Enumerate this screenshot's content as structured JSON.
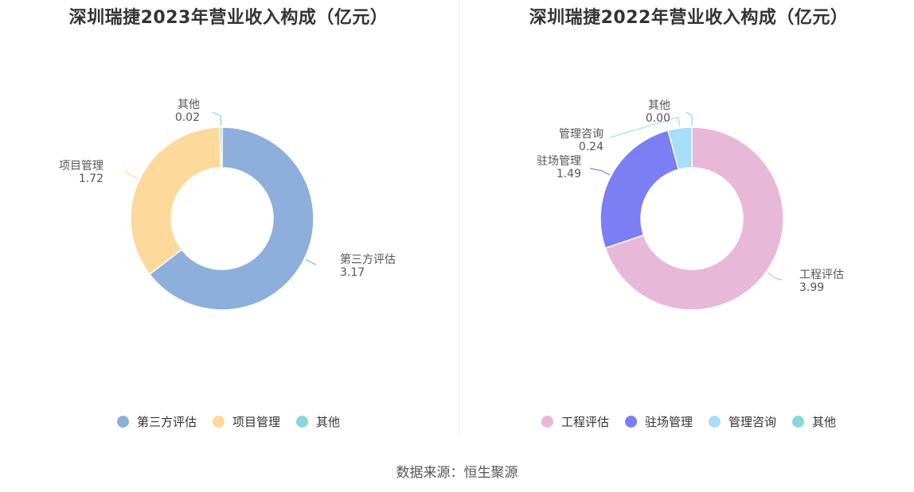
{
  "source": "数据来源：恒生聚源",
  "chart_data": [
    {
      "type": "pie",
      "title": "深圳瑞捷2023年营业收入构成（亿元）",
      "categories": [
        "第三方评估",
        "项目管理",
        "其他"
      ],
      "values": [
        3.17,
        1.72,
        0.02
      ],
      "value_labels": [
        "3.17",
        "1.72",
        "0.02"
      ],
      "colors": [
        "#8eaedb",
        "#fdd99b",
        "#89d6dc"
      ],
      "legend": "bottom-center"
    },
    {
      "type": "pie",
      "title": "深圳瑞捷2022年营业收入构成（亿元）",
      "categories": [
        "工程评估",
        "驻场管理",
        "管理咨询",
        "其他"
      ],
      "values": [
        3.99,
        1.49,
        0.24,
        0.0
      ],
      "value_labels": [
        "3.99",
        "1.49",
        "0.24",
        "0.00"
      ],
      "colors": [
        "#e8b8d8",
        "#7b7ff3",
        "#a8def7",
        "#89d6dc"
      ],
      "legend": "bottom-center"
    }
  ]
}
